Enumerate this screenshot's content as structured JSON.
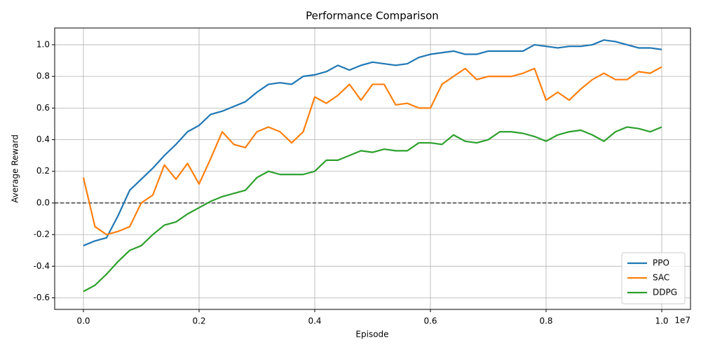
{
  "chart_data": {
    "type": "line",
    "title": "Performance Comparison",
    "xlabel": "Episode",
    "ylabel": "Average Reward",
    "x_offset_label": "1e7",
    "x": [
      0,
      200000,
      400000,
      600000,
      800000,
      1000000,
      1200000,
      1400000,
      1600000,
      1800000,
      2000000,
      2200000,
      2400000,
      2600000,
      2800000,
      3000000,
      3200000,
      3400000,
      3600000,
      3800000,
      4000000,
      4200000,
      4400000,
      4600000,
      4800000,
      5000000,
      5200000,
      5400000,
      5600000,
      5800000,
      6000000,
      6200000,
      6400000,
      6600000,
      6800000,
      7000000,
      7200000,
      7400000,
      7600000,
      7800000,
      8000000,
      8200000,
      8400000,
      8600000,
      8800000,
      9000000,
      9200000,
      9400000,
      9600000,
      9800000,
      10000000
    ],
    "series": [
      {
        "name": "PPO",
        "color": "#1f77b4",
        "values": [
          -0.27,
          -0.24,
          -0.22,
          -0.08,
          0.08,
          0.15,
          0.22,
          0.3,
          0.37,
          0.45,
          0.49,
          0.56,
          0.58,
          0.61,
          0.64,
          0.7,
          0.75,
          0.76,
          0.75,
          0.8,
          0.81,
          0.83,
          0.87,
          0.84,
          0.87,
          0.89,
          0.88,
          0.87,
          0.88,
          0.92,
          0.94,
          0.95,
          0.96,
          0.94,
          0.94,
          0.96,
          0.96,
          0.96,
          0.96,
          1.0,
          0.99,
          0.98,
          0.99,
          0.99,
          1.0,
          1.03,
          1.02,
          1.0,
          0.98,
          0.98,
          0.97
        ]
      },
      {
        "name": "SAC",
        "color": "#ff7f0e",
        "values": [
          0.16,
          -0.15,
          -0.2,
          -0.18,
          -0.15,
          0.0,
          0.05,
          0.24,
          0.15,
          0.25,
          0.12,
          0.28,
          0.45,
          0.37,
          0.35,
          0.45,
          0.48,
          0.45,
          0.38,
          0.45,
          0.67,
          0.63,
          0.68,
          0.75,
          0.65,
          0.75,
          0.75,
          0.62,
          0.63,
          0.6,
          0.6,
          0.75,
          0.8,
          0.85,
          0.78,
          0.8,
          0.8,
          0.8,
          0.82,
          0.85,
          0.65,
          0.7,
          0.65,
          0.72,
          0.78,
          0.82,
          0.78,
          0.78,
          0.83,
          0.82,
          0.86
        ]
      },
      {
        "name": "DDPG",
        "color": "#2ca02c",
        "values": [
          -0.56,
          -0.52,
          -0.45,
          -0.37,
          -0.3,
          -0.27,
          -0.2,
          -0.14,
          -0.12,
          -0.07,
          -0.03,
          0.01,
          0.04,
          0.06,
          0.08,
          0.16,
          0.2,
          0.18,
          0.18,
          0.18,
          0.2,
          0.27,
          0.27,
          0.3,
          0.33,
          0.32,
          0.34,
          0.33,
          0.33,
          0.38,
          0.38,
          0.37,
          0.43,
          0.39,
          0.38,
          0.4,
          0.45,
          0.45,
          0.44,
          0.42,
          0.39,
          0.43,
          0.45,
          0.46,
          0.43,
          0.39,
          0.45,
          0.48,
          0.47,
          0.45,
          0.48
        ]
      }
    ],
    "xlim": [
      -497000,
      10497000
    ],
    "ylim": [
      -0.673,
      1.106
    ],
    "xticks": [
      {
        "value": 0,
        "label": "0.0"
      },
      {
        "value": 2000000,
        "label": "0.2"
      },
      {
        "value": 4000000,
        "label": "0.4"
      },
      {
        "value": 6000000,
        "label": "0.6"
      },
      {
        "value": 8000000,
        "label": "0.8"
      },
      {
        "value": 10000000,
        "label": "1.0"
      }
    ],
    "yticks": [
      -0.6,
      -0.4,
      -0.2,
      {
        "value": 0,
        "label": "0.0"
      },
      0.2,
      0.4,
      0.6,
      0.8,
      {
        "value": 1,
        "label": "1.0"
      }
    ],
    "hline": {
      "value": 0,
      "color": "#000000"
    },
    "grid": true,
    "legend": "lower right"
  }
}
